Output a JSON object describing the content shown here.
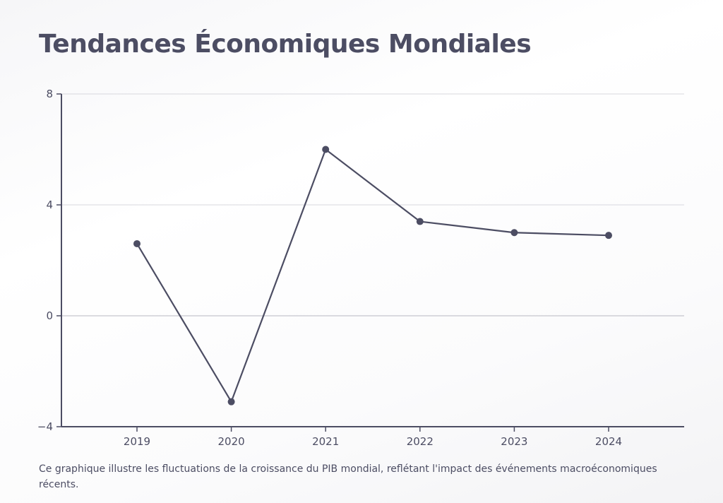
{
  "title": "Tendances Économiques Mondiales",
  "caption": "Ce graphique illustre les fluctuations de la croissance du PIB mondial, reflétant l'impact des événements macroéconomiques récents.",
  "colors": {
    "line": "#4c4d63",
    "grid": "#d8d8de",
    "axis": "#4c4d63"
  },
  "chart_data": {
    "type": "line",
    "title": "Tendances Économiques Mondiales",
    "xlabel": "",
    "ylabel": "",
    "categories": [
      "2019",
      "2020",
      "2021",
      "2022",
      "2023",
      "2024"
    ],
    "series": [
      {
        "values": [
          2.6,
          -3.1,
          6.0,
          3.4,
          3.0,
          2.9
        ]
      }
    ],
    "ylim": [
      -4,
      8
    ],
    "yticks": [
      8,
      4,
      0,
      -4
    ],
    "ytick_labels": [
      "8",
      "4",
      "0",
      "−4"
    ],
    "grid": true,
    "legend": "none"
  }
}
